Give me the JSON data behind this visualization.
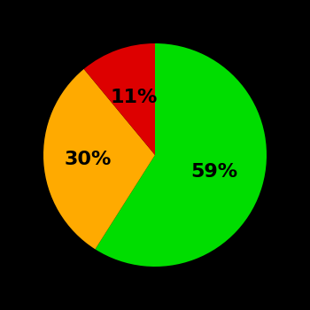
{
  "values": [
    59,
    30,
    11
  ],
  "colors": [
    "#00dd00",
    "#ffaa00",
    "#dd0000"
  ],
  "labels": [
    "59%",
    "30%",
    "11%"
  ],
  "label_radii": [
    0.55,
    0.6,
    0.55
  ],
  "background_color": "#000000",
  "text_color": "#000000",
  "startangle": 90,
  "counterclock": false,
  "fontsize": 16,
  "figsize": [
    3.5,
    3.5
  ],
  "dpi": 100
}
